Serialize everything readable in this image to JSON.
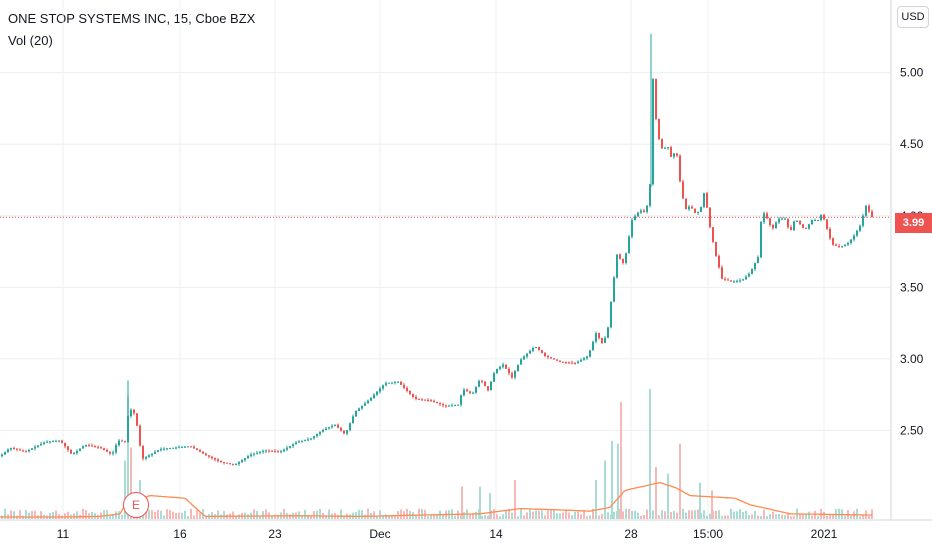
{
  "legend": {
    "title": "ONE STOP SYSTEMS INC, 15, Cboe BZX",
    "volume": "Vol (20)"
  },
  "currency_label": "USD",
  "last_price_label": "3.99",
  "earnings_marker": "E",
  "colors": {
    "up": "#26a69a",
    "down": "#ef5350",
    "vol_up": "#a9dcd5",
    "vol_down": "#f7b9b7",
    "vol_ma": "#ff8a50",
    "grid": "#eceff3",
    "last_line": "#ef5350"
  },
  "chart_data": {
    "type": "candlestick",
    "title": "ONE STOP SYSTEMS INC, 15, Cboe BZX",
    "xlabel": "",
    "ylabel": "",
    "grid": true,
    "ylim": [
      2.07,
      5.34
    ],
    "y_ticks": [
      2.5,
      3.0,
      3.5,
      4.0,
      4.5,
      5.0
    ],
    "y_tick_labels": [
      "2.50",
      "3.00",
      "3.50",
      "4.00",
      "4.50",
      "5.00"
    ],
    "x_ticks": [
      {
        "label": "11",
        "at": 63
      },
      {
        "label": "16",
        "at": 180
      },
      {
        "label": "23",
        "at": 275
      },
      {
        "label": "Dec",
        "at": 380
      },
      {
        "label": "14",
        "at": 496
      },
      {
        "label": "28",
        "at": 631
      },
      {
        "label": "15:00",
        "at": 708
      },
      {
        "label": "2021",
        "at": 824
      }
    ],
    "last_price": 3.99,
    "anchors": [
      {
        "at": 0,
        "close": 2.32
      },
      {
        "at": 10,
        "close": 2.38
      },
      {
        "at": 25,
        "close": 2.35
      },
      {
        "at": 45,
        "close": 2.42
      },
      {
        "at": 60,
        "close": 2.43
      },
      {
        "at": 72,
        "close": 2.33
      },
      {
        "at": 85,
        "close": 2.4
      },
      {
        "at": 100,
        "close": 2.38
      },
      {
        "at": 112,
        "close": 2.33
      },
      {
        "at": 118,
        "close": 2.43
      },
      {
        "at": 125,
        "close": 2.42
      },
      {
        "at": 128,
        "close": 2.6
      },
      {
        "at": 132,
        "close": 2.66
      },
      {
        "at": 136,
        "close": 2.58
      },
      {
        "at": 142,
        "close": 2.3
      },
      {
        "at": 150,
        "close": 2.33
      },
      {
        "at": 160,
        "close": 2.37
      },
      {
        "at": 175,
        "close": 2.38
      },
      {
        "at": 190,
        "close": 2.39
      },
      {
        "at": 205,
        "close": 2.33
      },
      {
        "at": 220,
        "close": 2.28
      },
      {
        "at": 235,
        "close": 2.26
      },
      {
        "at": 250,
        "close": 2.33
      },
      {
        "at": 265,
        "close": 2.36
      },
      {
        "at": 280,
        "close": 2.35
      },
      {
        "at": 297,
        "close": 2.42
      },
      {
        "at": 310,
        "close": 2.44
      },
      {
        "at": 322,
        "close": 2.5
      },
      {
        "at": 335,
        "close": 2.54
      },
      {
        "at": 345,
        "close": 2.47
      },
      {
        "at": 355,
        "close": 2.63
      },
      {
        "at": 370,
        "close": 2.72
      },
      {
        "at": 385,
        "close": 2.83
      },
      {
        "at": 398,
        "close": 2.84
      },
      {
        "at": 405,
        "close": 2.79
      },
      {
        "at": 415,
        "close": 2.72
      },
      {
        "at": 430,
        "close": 2.71
      },
      {
        "at": 445,
        "close": 2.67
      },
      {
        "at": 458,
        "close": 2.68
      },
      {
        "at": 463,
        "close": 2.79
      },
      {
        "at": 472,
        "close": 2.75
      },
      {
        "at": 480,
        "close": 2.86
      },
      {
        "at": 488,
        "close": 2.78
      },
      {
        "at": 495,
        "close": 2.92
      },
      {
        "at": 503,
        "close": 2.96
      },
      {
        "at": 512,
        "close": 2.87
      },
      {
        "at": 520,
        "close": 2.99
      },
      {
        "at": 535,
        "close": 3.09
      },
      {
        "at": 545,
        "close": 3.02
      },
      {
        "at": 560,
        "close": 2.98
      },
      {
        "at": 575,
        "close": 2.97
      },
      {
        "at": 588,
        "close": 3.02
      },
      {
        "at": 596,
        "close": 3.18
      },
      {
        "at": 603,
        "close": 3.1
      },
      {
        "at": 608,
        "close": 3.22
      },
      {
        "at": 612,
        "close": 3.46
      },
      {
        "at": 617,
        "close": 3.73
      },
      {
        "at": 624,
        "close": 3.66
      },
      {
        "at": 632,
        "close": 3.97
      },
      {
        "at": 640,
        "close": 4.04
      },
      {
        "at": 646,
        "close": 4.02
      },
      {
        "at": 650,
        "close": 4.22
      },
      {
        "at": 652,
        "close": 5.04
      },
      {
        "at": 654,
        "close": 4.87
      },
      {
        "at": 657,
        "close": 4.58
      },
      {
        "at": 662,
        "close": 4.47
      },
      {
        "at": 668,
        "close": 4.48
      },
      {
        "at": 672,
        "close": 4.39
      },
      {
        "at": 676,
        "close": 4.48
      },
      {
        "at": 680,
        "close": 4.24
      },
      {
        "at": 685,
        "close": 4.04
      },
      {
        "at": 690,
        "close": 4.07
      },
      {
        "at": 695,
        "close": 4.02
      },
      {
        "at": 700,
        "close": 4.03
      },
      {
        "at": 705,
        "close": 4.19
      },
      {
        "at": 708,
        "close": 3.99
      },
      {
        "at": 712,
        "close": 3.85
      },
      {
        "at": 716,
        "close": 3.72
      },
      {
        "at": 722,
        "close": 3.56
      },
      {
        "at": 732,
        "close": 3.54
      },
      {
        "at": 742,
        "close": 3.55
      },
      {
        "at": 750,
        "close": 3.6
      },
      {
        "at": 758,
        "close": 3.71
      },
      {
        "at": 762,
        "close": 4.04
      },
      {
        "at": 768,
        "close": 3.97
      },
      {
        "at": 772,
        "close": 3.9
      },
      {
        "at": 778,
        "close": 3.98
      },
      {
        "at": 785,
        "close": 3.98
      },
      {
        "at": 790,
        "close": 3.88
      },
      {
        "at": 795,
        "close": 3.98
      },
      {
        "at": 805,
        "close": 3.9
      },
      {
        "at": 812,
        "close": 3.97
      },
      {
        "at": 818,
        "close": 3.97
      },
      {
        "at": 822,
        "close": 4.02
      },
      {
        "at": 826,
        "close": 3.93
      },
      {
        "at": 832,
        "close": 3.8
      },
      {
        "at": 840,
        "close": 3.78
      },
      {
        "at": 848,
        "close": 3.81
      },
      {
        "at": 853,
        "close": 3.85
      },
      {
        "at": 860,
        "close": 3.93
      },
      {
        "at": 866,
        "close": 4.07
      },
      {
        "at": 872,
        "close": 3.99
      }
    ],
    "volume_ma_anchors": [
      {
        "at": 0,
        "v": 0.015
      },
      {
        "at": 60,
        "v": 0.015
      },
      {
        "at": 100,
        "v": 0.02
      },
      {
        "at": 120,
        "v": 0.04
      },
      {
        "at": 126,
        "v": 0.12
      },
      {
        "at": 150,
        "v": 0.18
      },
      {
        "at": 185,
        "v": 0.16
      },
      {
        "at": 205,
        "v": 0.02
      },
      {
        "at": 300,
        "v": 0.025
      },
      {
        "at": 360,
        "v": 0.02
      },
      {
        "at": 480,
        "v": 0.04
      },
      {
        "at": 520,
        "v": 0.08
      },
      {
        "at": 560,
        "v": 0.07
      },
      {
        "at": 590,
        "v": 0.06
      },
      {
        "at": 610,
        "v": 0.09
      },
      {
        "at": 625,
        "v": 0.22
      },
      {
        "at": 648,
        "v": 0.26
      },
      {
        "at": 660,
        "v": 0.28
      },
      {
        "at": 676,
        "v": 0.24
      },
      {
        "at": 690,
        "v": 0.18
      },
      {
        "at": 735,
        "v": 0.16
      },
      {
        "at": 750,
        "v": 0.11
      },
      {
        "at": 790,
        "v": 0.04
      },
      {
        "at": 872,
        "v": 0.03
      }
    ],
    "volume_spikes": [
      {
        "at": 128,
        "v": 0.95,
        "up": true
      },
      {
        "at": 131,
        "v": 0.55,
        "up": false
      },
      {
        "at": 125,
        "v": 0.45,
        "up": true
      },
      {
        "at": 140,
        "v": 0.3,
        "up": true
      },
      {
        "at": 462,
        "v": 0.25,
        "up": false
      },
      {
        "at": 480,
        "v": 0.25,
        "up": true
      },
      {
        "at": 490,
        "v": 0.2,
        "up": true
      },
      {
        "at": 515,
        "v": 0.3,
        "up": false
      },
      {
        "at": 596,
        "v": 0.3,
        "up": true
      },
      {
        "at": 605,
        "v": 0.45,
        "up": true
      },
      {
        "at": 612,
        "v": 0.6,
        "up": true
      },
      {
        "at": 618,
        "v": 0.58,
        "up": true
      },
      {
        "at": 621,
        "v": 0.9,
        "up": false
      },
      {
        "at": 650,
        "v": 1.0,
        "up": true
      },
      {
        "at": 656,
        "v": 0.4,
        "up": false
      },
      {
        "at": 668,
        "v": 0.35,
        "up": true
      },
      {
        "at": 680,
        "v": 0.58,
        "up": false
      },
      {
        "at": 700,
        "v": 0.28,
        "up": true
      },
      {
        "at": 712,
        "v": 0.22,
        "up": false
      }
    ]
  }
}
